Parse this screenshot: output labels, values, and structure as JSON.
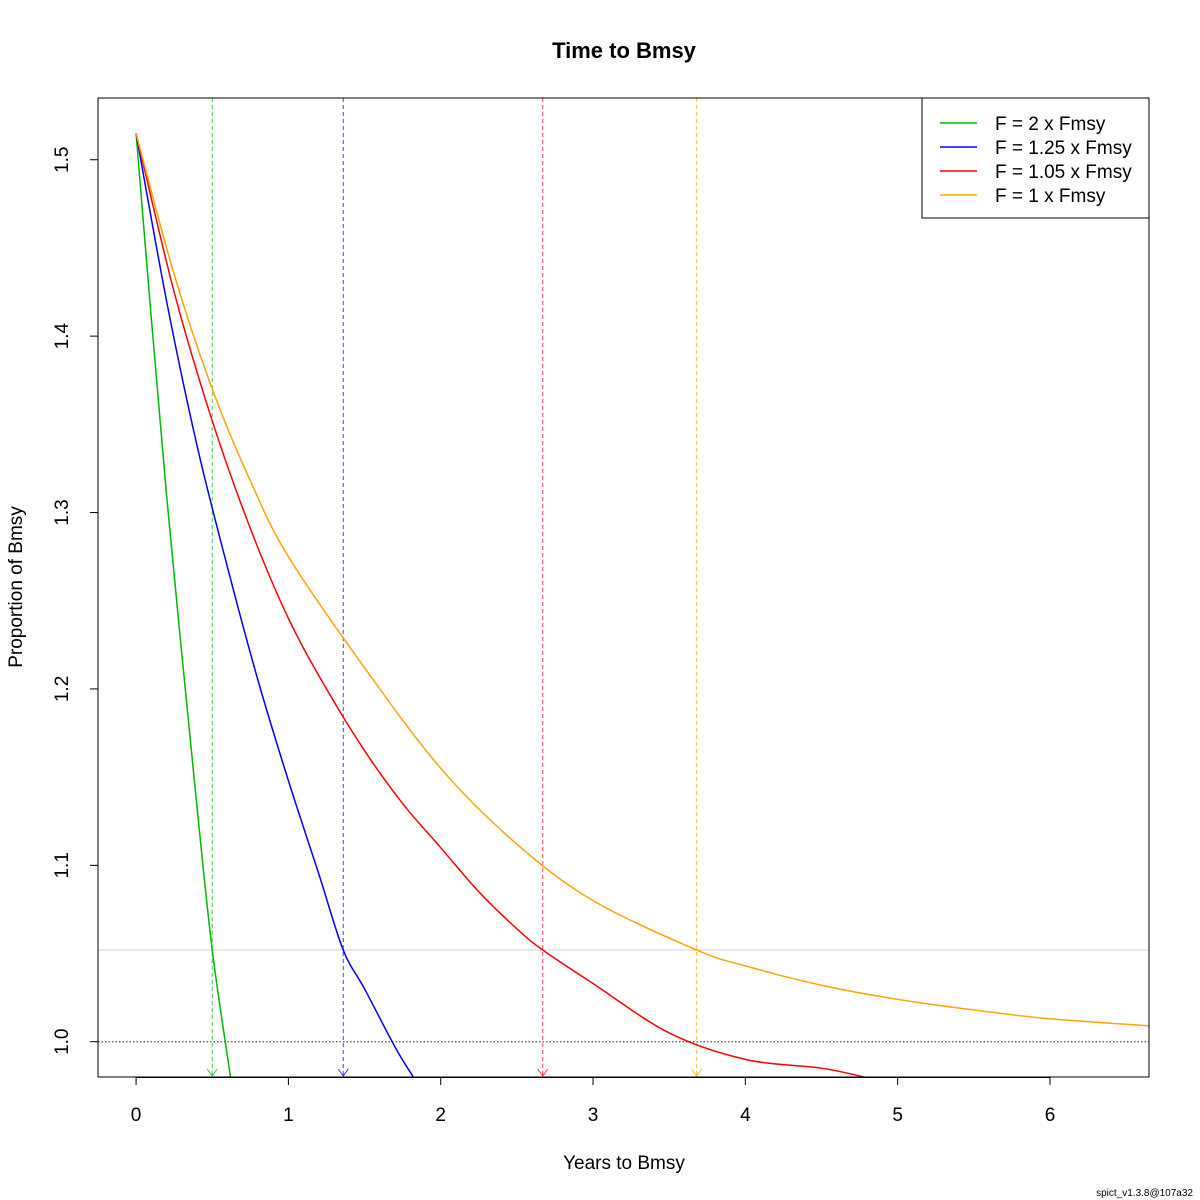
{
  "chart_data": {
    "type": "line",
    "title": "Time to Bmsy",
    "xlabel": "Years to Bmsy",
    "ylabel": "Proportion of Bmsy",
    "xlim": [
      -0.25,
      6.65
    ],
    "ylim": [
      0.98,
      1.535
    ],
    "x_ticks": [
      0,
      1,
      2,
      3,
      4,
      5,
      6
    ],
    "y_ticks": [
      1.0,
      1.1,
      1.2,
      1.3,
      1.4,
      1.5
    ],
    "x_tick_labels": [
      "0",
      "1",
      "2",
      "3",
      "4",
      "5",
      "6"
    ],
    "y_tick_labels": [
      "1.0",
      "1.1",
      "1.2",
      "1.3",
      "1.4",
      "1.5"
    ],
    "reference_lines": [
      {
        "orientation": "horizontal",
        "y": 1.0,
        "style": "dotted",
        "color": "#555555"
      },
      {
        "orientation": "horizontal",
        "y": 1.052,
        "style": "solid",
        "color": "#d9d9d9"
      }
    ],
    "legend_position": "top-right",
    "series": [
      {
        "name": "F = 2 x Fmsy",
        "color": "#00bb00",
        "x": [
          0,
          0.1,
          0.2,
          0.3,
          0.4,
          0.5,
          0.62
        ],
        "y": [
          1.515,
          1.41,
          1.31,
          1.22,
          1.133,
          1.052,
          0.98
        ],
        "time_to_bmsy": 0.5
      },
      {
        "name": "F = 1.25 x Fmsy",
        "color": "#0000ff",
        "x": [
          0,
          0.2,
          0.4,
          0.6,
          0.8,
          1.0,
          1.2,
          1.36,
          1.5,
          1.7,
          1.82
        ],
        "y": [
          1.515,
          1.42,
          1.338,
          1.269,
          1.205,
          1.148,
          1.095,
          1.052,
          1.03,
          0.997,
          0.98
        ],
        "time_to_bmsy": 1.36
      },
      {
        "name": "F = 1.05 x Fmsy",
        "color": "#ff0000",
        "x": [
          0,
          0.25,
          0.5,
          0.75,
          1.0,
          1.25,
          1.5,
          1.75,
          2.0,
          2.25,
          2.5,
          2.67,
          3.0,
          3.5,
          4.0,
          4.5,
          4.78
        ],
        "y": [
          1.515,
          1.425,
          1.352,
          1.291,
          1.24,
          1.2,
          1.165,
          1.135,
          1.11,
          1.085,
          1.064,
          1.052,
          1.033,
          1.005,
          0.99,
          0.985,
          0.98
        ],
        "time_to_bmsy": 2.67
      },
      {
        "name": "F = 1 x Fmsy",
        "color": "#ffa500",
        "x": [
          0,
          0.25,
          0.5,
          0.75,
          1.0,
          1.5,
          2.0,
          2.5,
          3.0,
          3.68,
          4.0,
          4.5,
          5.0,
          5.5,
          6.0,
          6.65
        ],
        "y": [
          1.515,
          1.435,
          1.37,
          1.318,
          1.275,
          1.212,
          1.155,
          1.112,
          1.08,
          1.052,
          1.043,
          1.032,
          1.024,
          1.018,
          1.013,
          1.009
        ],
        "time_to_bmsy": 3.68
      }
    ]
  },
  "footer_text": "spict_v1.3.8@107a32"
}
